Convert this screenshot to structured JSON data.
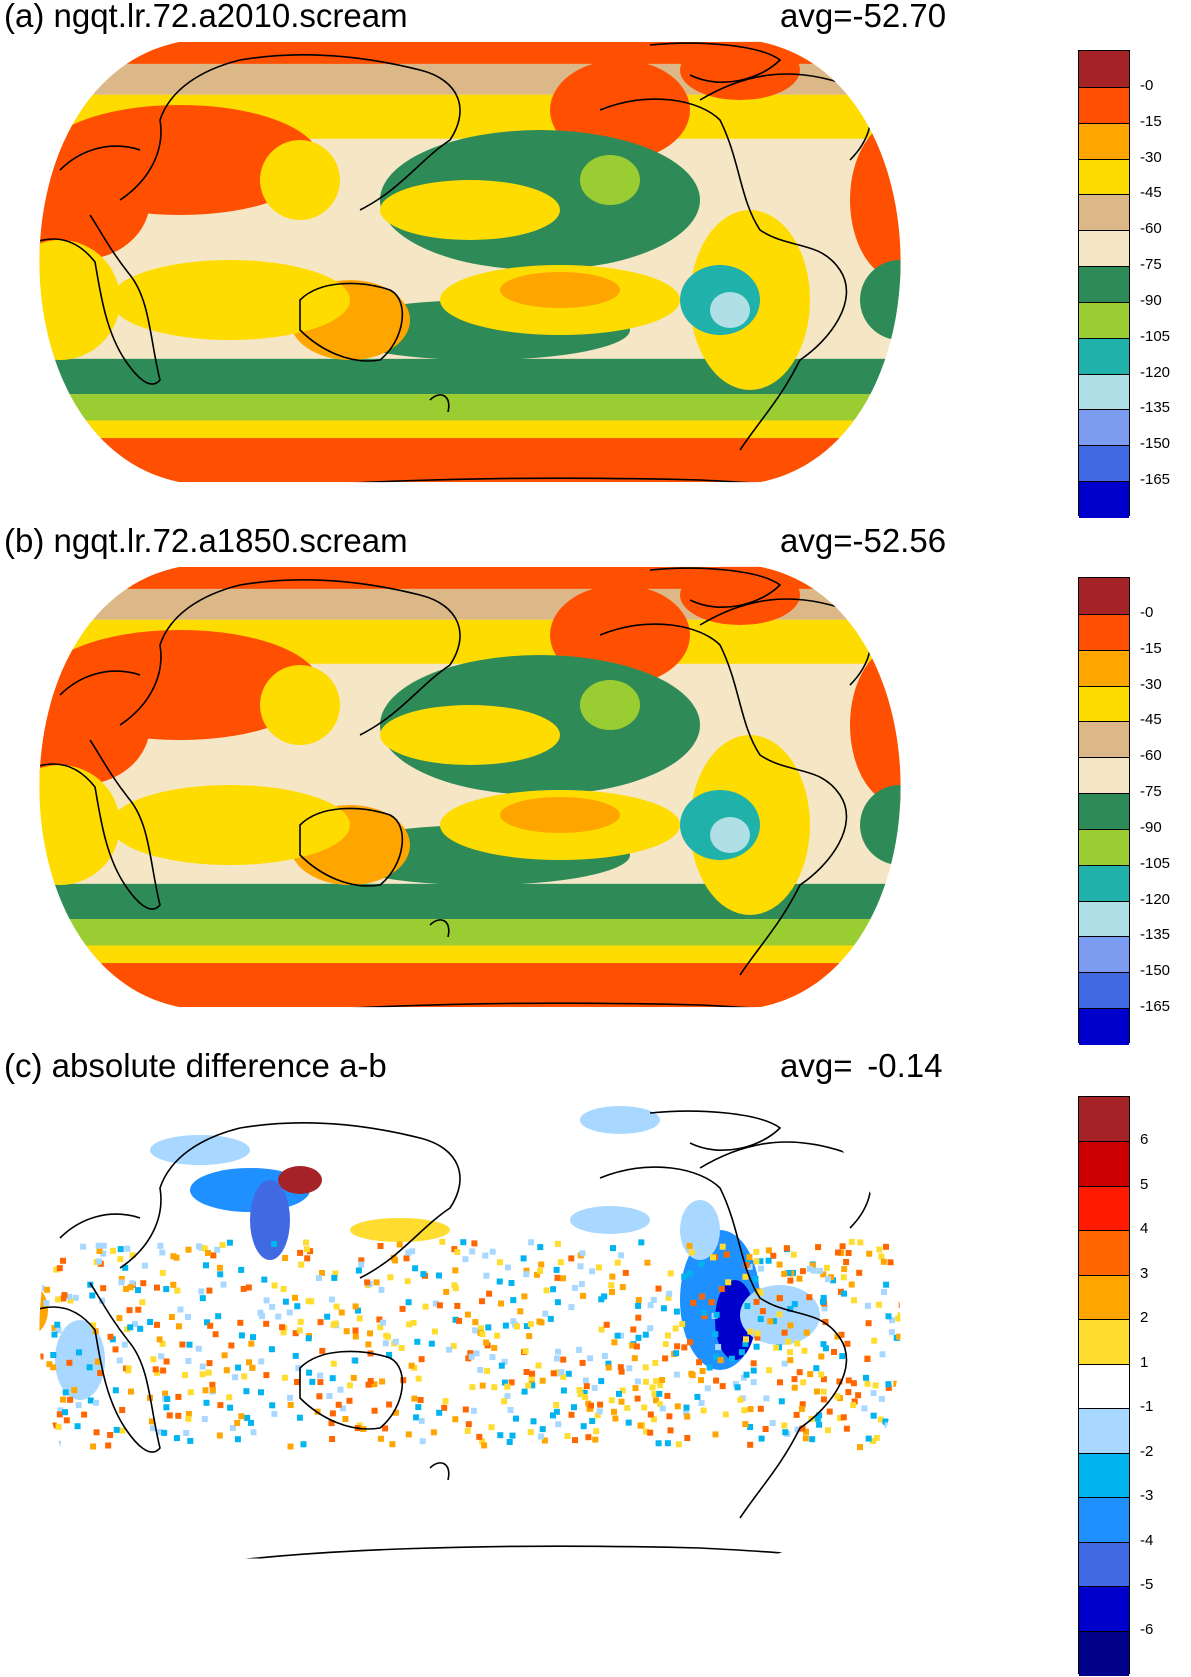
{
  "panels": [
    {
      "id": "a",
      "title": "(a) ngqt.lr.72.a2010.scream",
      "avg_label": "avg=",
      "avg_value": "-52.70",
      "legend": {
        "labels": [
          "-0",
          "-15",
          "-30",
          "-45",
          "-60",
          "-75",
          "-90",
          "-105",
          "-120",
          "-135",
          "-150",
          "-165"
        ],
        "colors": [
          "#a52226",
          "#ff4f00",
          "#ffa500",
          "#ffdc00",
          "#dcb888",
          "#f5e6c6",
          "#2e8b57",
          "#9acd32",
          "#20b2aa",
          "#b0e0e6",
          "#7b9cf0",
          "#4169e1",
          "#0000cd"
        ]
      }
    },
    {
      "id": "b",
      "title": "(b) ngqt.lr.72.a1850.scream",
      "avg_label": "avg=",
      "avg_value": "-52.56",
      "legend": {
        "labels": [
          "-0",
          "-15",
          "-30",
          "-45",
          "-60",
          "-75",
          "-90",
          "-105",
          "-120",
          "-135",
          "-150",
          "-165"
        ],
        "colors": [
          "#a52226",
          "#ff4f00",
          "#ffa500",
          "#ffdc00",
          "#dcb888",
          "#f5e6c6",
          "#2e8b57",
          "#9acd32",
          "#20b2aa",
          "#b0e0e6",
          "#7b9cf0",
          "#4169e1",
          "#0000cd"
        ]
      }
    },
    {
      "id": "c",
      "title": "(c) absolute difference a-b",
      "avg_label": "avg=",
      "avg_value": "-0.14",
      "legend": {
        "labels": [
          "6",
          "5",
          "4",
          "3",
          "2",
          "1",
          "-1",
          "-2",
          "-3",
          "-4",
          "-5",
          "-6"
        ],
        "colors": [
          "#a52226",
          "#cc0000",
          "#ff1a00",
          "#ff6600",
          "#ffa500",
          "#ffdc30",
          "#ffffff",
          "#a8d8ff",
          "#00b4f0",
          "#1e90ff",
          "#4169e1",
          "#0000cd",
          "#00008b"
        ]
      }
    }
  ]
}
